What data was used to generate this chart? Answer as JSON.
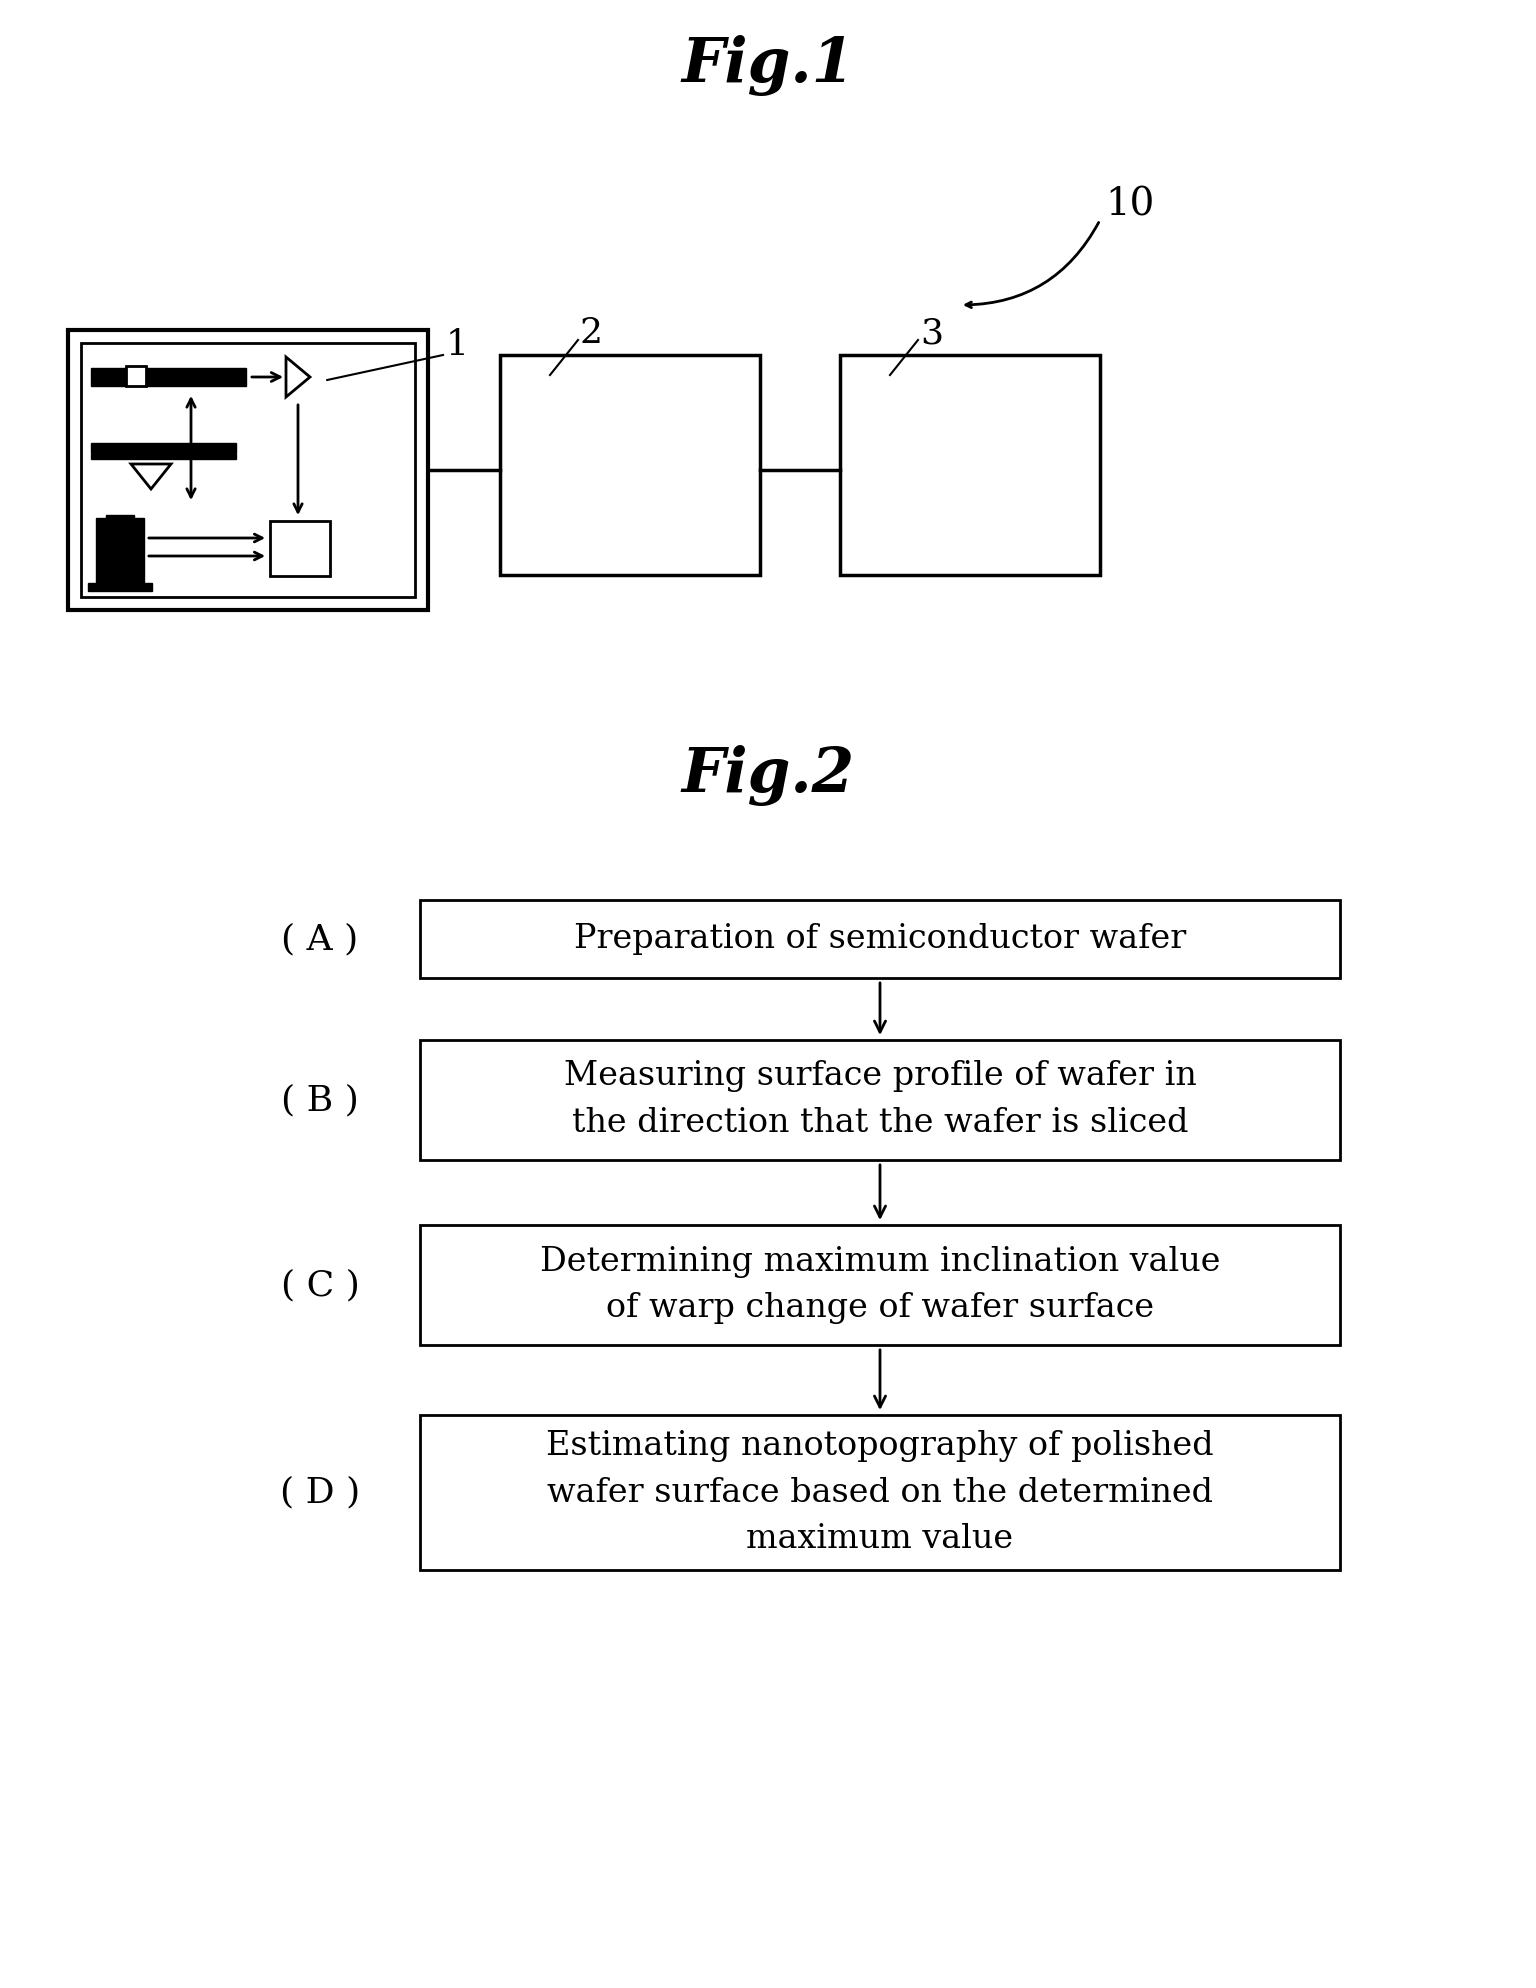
{
  "fig1_title": "Fig.1",
  "fig2_title": "Fig.2",
  "background_color": "#ffffff",
  "fig_width": 15.36,
  "fig_height": 19.88,
  "label_10": "10",
  "label_1": "1",
  "label_2": "2",
  "label_3": "3",
  "label_A": "( A )",
  "label_B": "( B )",
  "label_C": "( C )",
  "label_D": "( D )",
  "box_A_text": "Preparation of semiconductor wafer",
  "box_B_text": "Measuring surface profile of wafer in\nthe direction that the wafer is sliced",
  "box_C_text": "Determining maximum inclination value\nof warp change of wafer surface",
  "box_D_text": "Estimating nanotopography of polished\nwafer surface based on the determined\nmaximum value"
}
